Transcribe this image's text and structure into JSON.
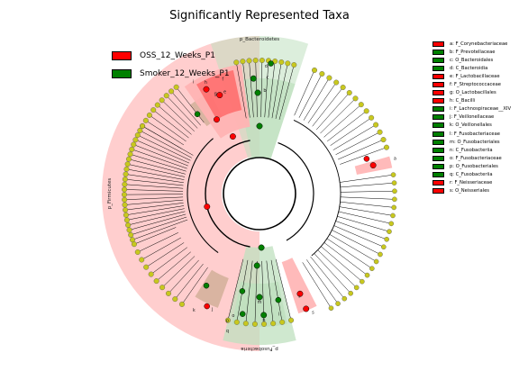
{
  "title": "Significantly Represented Taxa",
  "colors": {
    "oss": "#ff0000",
    "smoker": "#008000",
    "oss_shade": "#ffb3b3",
    "smoker_shade": "#bfe0bf",
    "brown_shade": "#c9a98f",
    "neutral_node": "#c8c81e",
    "line": "#000000"
  },
  "groups": [
    {
      "key": "oss",
      "label": "OSS_12_Weeks_P1"
    },
    {
      "key": "smoker",
      "label": "Smoker_12_Weeks_P1"
    }
  ],
  "taxa": [
    {
      "label": "a: F_Corynebacteriaceae",
      "group": "oss"
    },
    {
      "label": "b: F_Prevotellaceae",
      "group": "smoker"
    },
    {
      "label": "c: O_Bacteroidales",
      "group": "smoker"
    },
    {
      "label": "d: C_Bacteroidia",
      "group": "smoker"
    },
    {
      "label": "e: F_Lactobacillaceae",
      "group": "oss"
    },
    {
      "label": "f: F_Streptococcaceae",
      "group": "oss"
    },
    {
      "label": "g: O_Lactobacillales",
      "group": "oss"
    },
    {
      "label": "h: C_Bacilli",
      "group": "oss"
    },
    {
      "label": "i: F_Lachnospiraceae__XIV",
      "group": "smoker"
    },
    {
      "label": "j: F_Veillonellaceae",
      "group": "smoker"
    },
    {
      "label": "k: O_Veillonellales",
      "group": "smoker"
    },
    {
      "label": "l: F_Fusobacteriaceae",
      "group": "smoker"
    },
    {
      "label": "m: O_Fusobacteriales",
      "group": "smoker"
    },
    {
      "label": "n: C_Fusobacteriia",
      "group": "smoker"
    },
    {
      "label": "o: F_Fusobacteriaceae",
      "group": "smoker"
    },
    {
      "label": "p: O_Fusobacteriales",
      "group": "smoker"
    },
    {
      "label": "q: C_Fusobacteriia",
      "group": "smoker"
    },
    {
      "label": "r: F_Neisseriaceae",
      "group": "oss"
    },
    {
      "label": "s: O_Neisseriales",
      "group": "oss"
    }
  ],
  "phyla": [
    {
      "label": "p_Bacteroidetes",
      "group": "smoker"
    },
    {
      "label": "p_Firmicutes",
      "group": "oss"
    },
    {
      "label": "p_Fusobacteria",
      "group": "smoker"
    }
  ],
  "clade_letters": [
    "a",
    "b",
    "c",
    "d",
    "e",
    "f",
    "g",
    "h",
    "i",
    "j",
    "k",
    "l",
    "m",
    "n",
    "o",
    "p",
    "q",
    "r",
    "s"
  ]
}
